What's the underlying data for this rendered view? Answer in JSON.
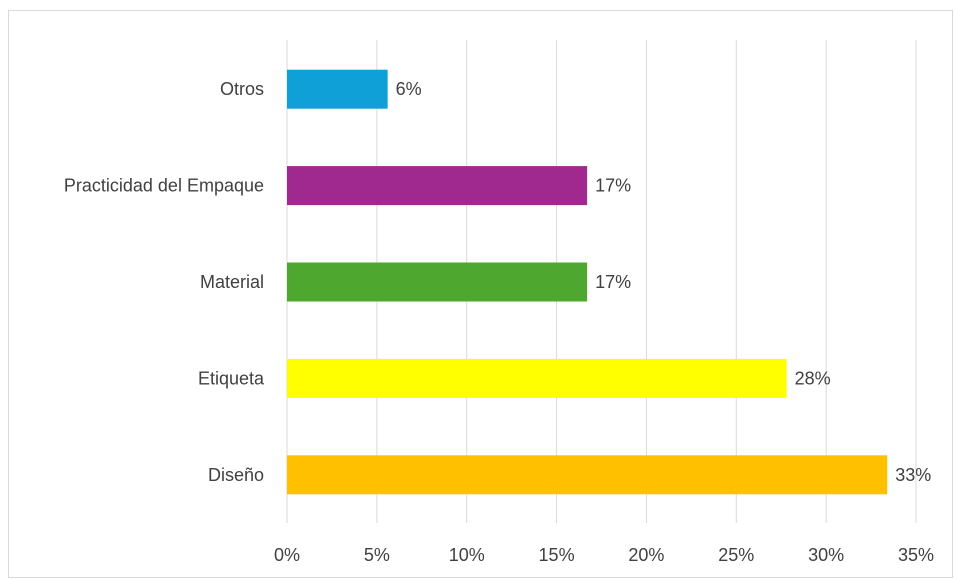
{
  "chart_data": {
    "type": "bar",
    "orientation": "horizontal",
    "categories": [
      "Otros",
      "Practicidad del Empaque",
      "Material",
      "Etiqueta",
      "Diseño"
    ],
    "values": [
      5.6,
      16.7,
      16.7,
      27.8,
      33.4
    ],
    "data_labels": [
      "6%",
      "17%",
      "17%",
      "28%",
      "33%"
    ],
    "colors": [
      "#0fa0d8",
      "#a0298f",
      "#4ea72e",
      "#ffff00",
      "#ffc000"
    ],
    "xlim": [
      0,
      35
    ],
    "x_ticks": [
      0,
      5,
      10,
      15,
      20,
      25,
      30,
      35
    ],
    "x_tick_labels": [
      "0%",
      "5%",
      "10%",
      "15%",
      "20%",
      "25%",
      "30%",
      "35%"
    ],
    "grid": true,
    "legend": false
  }
}
